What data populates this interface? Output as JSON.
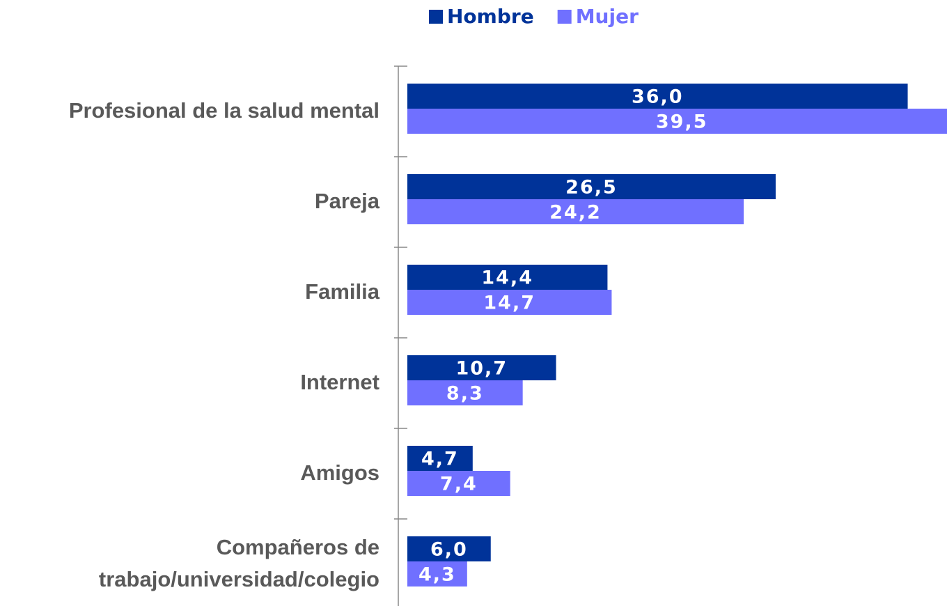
{
  "chart_data": {
    "type": "bar",
    "orientation": "horizontal",
    "categories": [
      "Profesional de la salud mental",
      "Pareja",
      "Familia",
      "Internet",
      "Amigos",
      "Compañeros de trabajo/universidad/colegio"
    ],
    "series": [
      {
        "name": "Hombre",
        "color": "#003399",
        "values": [
          36.0,
          26.5,
          14.4,
          10.7,
          4.7,
          6.0
        ],
        "value_labels": [
          "36,0",
          "26,5",
          "14,4",
          "10,7",
          "4,7",
          "6,0"
        ]
      },
      {
        "name": "Mujer",
        "color": "#7070ff",
        "values": [
          39.5,
          24.2,
          14.7,
          8.3,
          7.4,
          4.3
        ],
        "value_labels": [
          "39,5",
          "24,2",
          "14,7",
          "8,3",
          "7,4",
          "4,3"
        ]
      }
    ],
    "legend": "top"
  }
}
